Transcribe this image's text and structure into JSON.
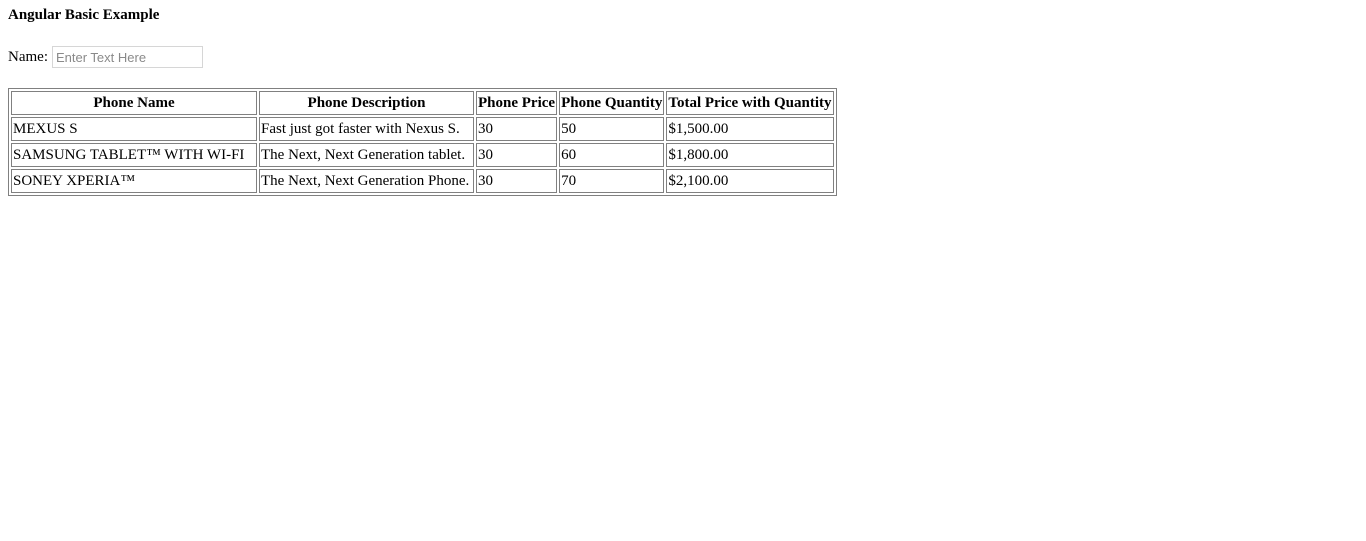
{
  "page": {
    "title": "Angular Basic Example"
  },
  "form": {
    "name_label": "Name:",
    "name_value": "",
    "name_placeholder": "Enter Text Here"
  },
  "table": {
    "headers": [
      "Phone Name",
      "Phone Description",
      "Phone Price",
      "Phone Quantity",
      "Total Price with Quantity"
    ],
    "rows": [
      [
        "MEXUS S",
        "Fast just got faster with Nexus S.",
        "30",
        "50",
        "$1,500.00"
      ],
      [
        "SAMSUNG TABLET™ WITH WI-FI",
        "The Next, Next Generation tablet.",
        "30",
        "60",
        "$1,800.00"
      ],
      [
        "SONEY XPERIA™",
        "The Next, Next Generation Phone.",
        "30",
        "70",
        "$2,100.00"
      ]
    ]
  }
}
